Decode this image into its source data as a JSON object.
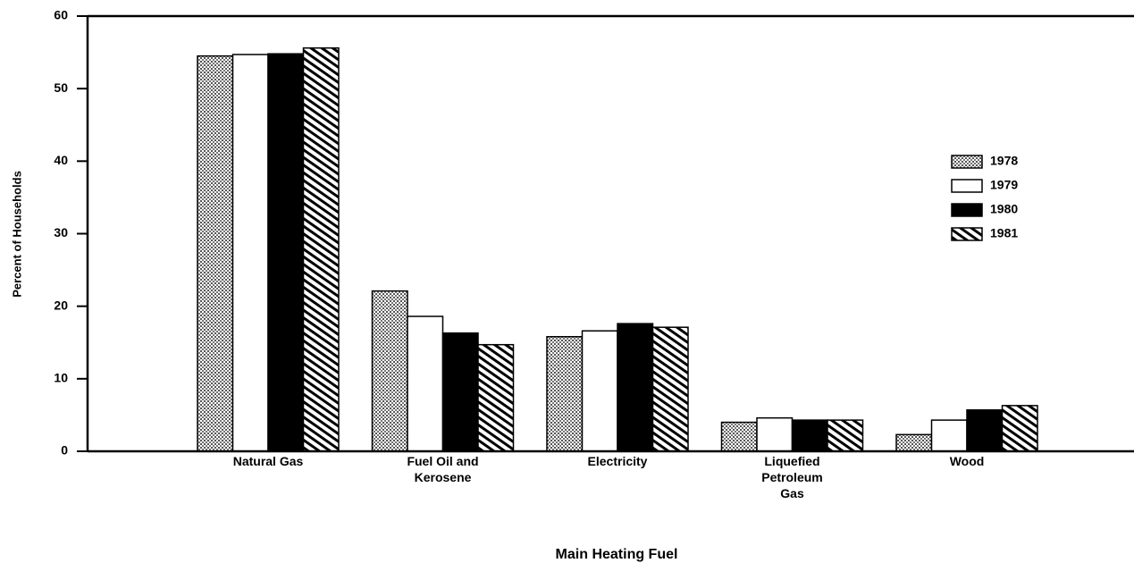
{
  "chart_data": {
    "type": "bar",
    "x_label": "Main Heating Fuel",
    "y_label": "Percent of Households",
    "categories": [
      "Natural Gas",
      "Fuel Oil and\nKerosene",
      "Electricity",
      "Liquefied\nPetroleum\nGas",
      "Wood"
    ],
    "series": [
      {
        "name": "1978",
        "color": "#b8b8b8",
        "pattern": "dots",
        "values": [
          54.5,
          22.1,
          15.8,
          4.0,
          2.3
        ]
      },
      {
        "name": "1979",
        "color": "#ffffff",
        "pattern": "solid",
        "values": [
          54.7,
          18.6,
          16.6,
          4.6,
          4.3
        ]
      },
      {
        "name": "1980",
        "color": "#000000",
        "pattern": "solid",
        "values": [
          54.8,
          16.3,
          17.6,
          4.3,
          5.7
        ]
      },
      {
        "name": "1981",
        "color": "#000000",
        "pattern": "hatch",
        "values": [
          55.6,
          14.7,
          17.1,
          4.3,
          6.3
        ]
      }
    ],
    "ylim": [
      0,
      60
    ],
    "yticks": [
      0,
      10,
      20,
      30,
      40,
      50,
      60
    ],
    "grid": false,
    "legend": "right"
  }
}
